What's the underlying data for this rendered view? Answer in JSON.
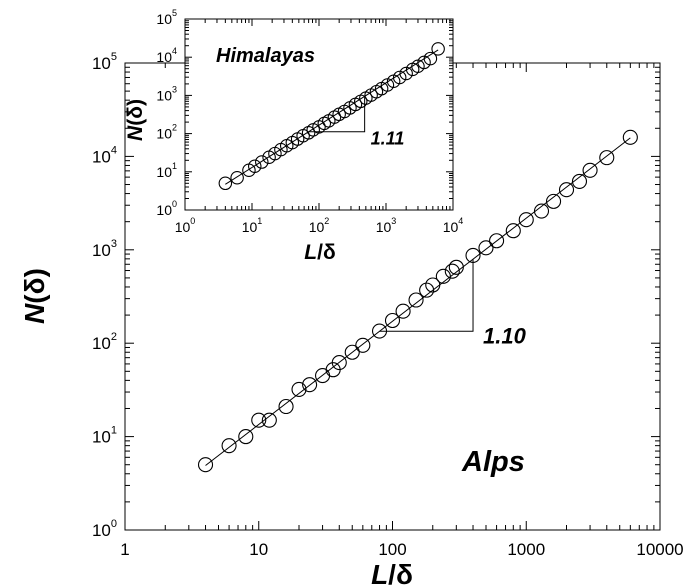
{
  "chart_data": [
    {
      "type": "scatter",
      "panel": "main",
      "xlabel_italic": "L",
      "xlabel_rest": "/δ",
      "ylabel_italic": "N",
      "ylabel_rest": "(δ)",
      "xscale": "log",
      "yscale": "log",
      "xlim": [
        1,
        10000
      ],
      "ylim": [
        1,
        100000
      ],
      "x_tick_labels": [
        "1",
        "10",
        "100",
        "1000",
        "10000"
      ],
      "y_tick_values": [
        1,
        10,
        100,
        1000,
        10000,
        100000
      ],
      "y_tick_base": "10",
      "y_tick_exponents": [
        "0",
        "1",
        "2",
        "3",
        "4",
        "5"
      ],
      "place_label": "Alps",
      "slope_label": "1.10",
      "slope": 1.1,
      "grid": false,
      "legend": "none",
      "series": [
        {
          "x": [
            4,
            6,
            8,
            10,
            12,
            16,
            20,
            24,
            30,
            36,
            40,
            50,
            60,
            80,
            100,
            120,
            150,
            180,
            200,
            240,
            280,
            300,
            400,
            500,
            600,
            800,
            1000,
            1300,
            1600,
            2000,
            2500,
            3000,
            4000,
            6000
          ],
          "y": [
            5,
            8,
            10,
            15,
            15,
            21,
            32,
            36,
            45,
            52,
            62,
            80,
            95,
            135,
            175,
            220,
            290,
            370,
            420,
            520,
            590,
            650,
            870,
            1050,
            1250,
            1600,
            2100,
            2600,
            3300,
            4400,
            5400,
            7100,
            9700,
            16000
          ]
        }
      ],
      "fit_line": {
        "x": [
          4,
          6000
        ],
        "y": [
          4.9,
          15800
        ]
      }
    },
    {
      "type": "scatter",
      "panel": "inset",
      "xlabel_italic": "L",
      "xlabel_rest": "/δ",
      "ylabel_italic": "N",
      "ylabel_rest": "(δ)",
      "xscale": "log",
      "yscale": "log",
      "xlim": [
        1,
        10000
      ],
      "ylim": [
        1,
        100000
      ],
      "x_tick_base": "10",
      "x_tick_exponents": [
        "0",
        "1",
        "2",
        "3",
        "4"
      ],
      "y_tick_base": "10",
      "y_tick_exponents": [
        "0",
        "1",
        "2",
        "3",
        "4",
        "5"
      ],
      "place_label": "Himalayas",
      "slope_label": "1.11",
      "slope": 1.11,
      "grid": false,
      "legend": "none",
      "series": [
        {
          "x": [
            4,
            6,
            9,
            11,
            14,
            18,
            22,
            27,
            33,
            40,
            48,
            58,
            70,
            82,
            100,
            120,
            140,
            170,
            200,
            240,
            290,
            350,
            420,
            500,
            600,
            720,
            860,
            1050,
            1300,
            1600,
            2000,
            2500,
            3000,
            3700,
            4600,
            6000
          ],
          "y": [
            5,
            7,
            11,
            14,
            18,
            24,
            30,
            38,
            48,
            58,
            72,
            88,
            105,
            125,
            150,
            185,
            215,
            270,
            320,
            380,
            470,
            580,
            700,
            850,
            1020,
            1250,
            1500,
            1870,
            2350,
            2950,
            3750,
            4800,
            5800,
            7300,
            9200,
            16500
          ]
        }
      ],
      "fit_line": {
        "x": [
          4,
          6000
        ],
        "y": [
          4.7,
          15500
        ]
      }
    }
  ]
}
